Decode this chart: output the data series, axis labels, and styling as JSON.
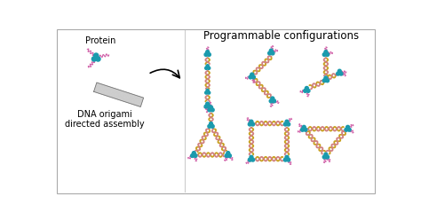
{
  "title": "Programmable configurations",
  "protein_label": "Protein",
  "dna_label": "DNA origami\ndirected assembly",
  "bg_color": "#ffffff",
  "border_color": "#aaaaaa",
  "protein_color": "#1a9aad",
  "strand_color": "#d060a8",
  "dna_rod_color": "#999999",
  "beam_color1": "#c8a020",
  "beam_color2": "#d08080",
  "node_color": "#1a9aad",
  "title_fontsize": 8.5,
  "label_fontsize": 7.0,
  "fig_w": 4.74,
  "fig_h": 2.48,
  "dpi": 100
}
